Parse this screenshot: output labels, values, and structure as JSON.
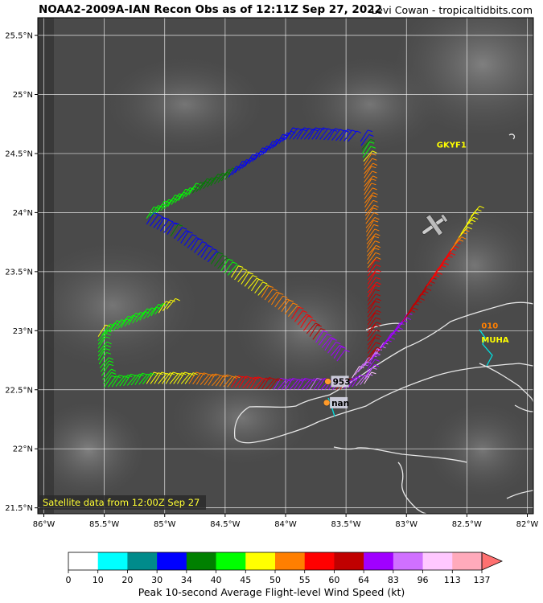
{
  "header": {
    "title": "NOAA2-2009A-IAN Recon Obs as of 12:11Z Sep 27, 2022",
    "credit": "Levi Cowan - tropicaltidbits.com"
  },
  "map": {
    "lon_range": [
      -86.05,
      -81.95
    ],
    "lat_range": [
      21.45,
      25.65
    ],
    "lon_ticks": [
      {
        "value": -86.0,
        "label": "86°W"
      },
      {
        "value": -85.5,
        "label": "85.5°W"
      },
      {
        "value": -85.0,
        "label": "85°W"
      },
      {
        "value": -84.5,
        "label": "84.5°W"
      },
      {
        "value": -84.0,
        "label": "84°W"
      },
      {
        "value": -83.5,
        "label": "83.5°W"
      },
      {
        "value": -83.0,
        "label": "83°W"
      },
      {
        "value": -82.5,
        "label": "82.5°W"
      },
      {
        "value": -82.0,
        "label": "82°W"
      }
    ],
    "lat_ticks": [
      {
        "value": 25.5,
        "label": "25.5°N"
      },
      {
        "value": 25.0,
        "label": "25°N"
      },
      {
        "value": 24.5,
        "label": "24.5°N"
      },
      {
        "value": 24.0,
        "label": "24°N"
      },
      {
        "value": 23.5,
        "label": "23.5°N"
      },
      {
        "value": 23.0,
        "label": "23°N"
      },
      {
        "value": 22.5,
        "label": "22.5°N"
      },
      {
        "value": 22.0,
        "label": "22°N"
      },
      {
        "value": 21.5,
        "label": "21.5°N"
      }
    ],
    "satellite_note": "Satellite data from 12:00Z Sep 27",
    "stations": [
      {
        "id": "GKYF1",
        "lon": -82.75,
        "lat": 24.55,
        "color": "#ffff00"
      },
      {
        "id": "MUHA",
        "lon": -82.38,
        "lat": 22.9,
        "color": "#ffff00"
      },
      {
        "id": "010",
        "lon": -82.38,
        "lat": 23.02,
        "color": "#ff7f00"
      }
    ],
    "center_fixes": [
      {
        "label": "953",
        "lon": -83.65,
        "lat": 22.57
      },
      {
        "label": "nan",
        "lon": -83.66,
        "lat": 22.39
      }
    ],
    "flight_track": [
      {
        "lon": -83.38,
        "lat": 24.6,
        "kt": 30
      },
      {
        "lon": -83.35,
        "lat": 24.4,
        "kt": 50
      },
      {
        "lon": -83.35,
        "lat": 24.15,
        "kt": 50
      },
      {
        "lon": -83.33,
        "lat": 23.8,
        "kt": 50
      },
      {
        "lon": -83.32,
        "lat": 23.5,
        "kt": 55
      },
      {
        "lon": -83.32,
        "lat": 23.25,
        "kt": 60
      },
      {
        "lon": -83.32,
        "lat": 22.95,
        "kt": 60
      },
      {
        "lon": -83.32,
        "lat": 22.7,
        "kt": 64
      },
      {
        "lon": -83.35,
        "lat": 22.55,
        "kt": 96
      },
      {
        "lon": -83.55,
        "lat": 22.5,
        "kt": 60
      },
      {
        "lon": -83.8,
        "lat": 22.5,
        "kt": 83
      },
      {
        "lon": -84.1,
        "lat": 22.5,
        "kt": 64
      },
      {
        "lon": -84.45,
        "lat": 22.52,
        "kt": 55
      },
      {
        "lon": -84.8,
        "lat": 22.55,
        "kt": 50
      },
      {
        "lon": -85.15,
        "lat": 22.55,
        "kt": 45
      },
      {
        "lon": -85.5,
        "lat": 22.52,
        "kt": 40
      },
      {
        "lon": -85.55,
        "lat": 22.75,
        "kt": 40
      },
      {
        "lon": -85.55,
        "lat": 22.95,
        "kt": 45
      },
      {
        "lon": -85.3,
        "lat": 23.05,
        "kt": 40
      },
      {
        "lon": -85.05,
        "lat": 23.15,
        "kt": 45
      },
      {
        "lon": -84.95,
        "lat": 23.2,
        "kt": 50
      }
    ],
    "leg_diagonal_nw": [
      {
        "lon": -85.15,
        "lat": 23.9,
        "kt": 30
      },
      {
        "lon": -84.95,
        "lat": 23.8,
        "kt": 34
      },
      {
        "lon": -84.7,
        "lat": 23.62,
        "kt": 30
      },
      {
        "lon": -84.45,
        "lat": 23.45,
        "kt": 45
      },
      {
        "lon": -84.2,
        "lat": 23.28,
        "kt": 50
      },
      {
        "lon": -83.95,
        "lat": 23.1,
        "kt": 55
      },
      {
        "lon": -83.75,
        "lat": 22.9,
        "kt": 64
      },
      {
        "lon": -83.55,
        "lat": 22.72,
        "kt": 83
      }
    ],
    "leg_diagonal_ne": [
      {
        "lon": -83.45,
        "lat": 22.6,
        "kt": 96
      },
      {
        "lon": -83.25,
        "lat": 22.8,
        "kt": 83
      },
      {
        "lon": -83.05,
        "lat": 23.05,
        "kt": 64
      },
      {
        "lon": -82.85,
        "lat": 23.35,
        "kt": 60
      },
      {
        "lon": -82.65,
        "lat": 23.65,
        "kt": 55
      },
      {
        "lon": -82.5,
        "lat": 23.9,
        "kt": 45
      },
      {
        "lon": -82.45,
        "lat": 24.0,
        "kt": 50
      }
    ],
    "leg_north_arc": [
      {
        "lon": -85.15,
        "lat": 23.95,
        "kt": 40
      },
      {
        "lon": -84.8,
        "lat": 24.15,
        "kt": 40
      },
      {
        "lon": -84.5,
        "lat": 24.28,
        "kt": 34
      },
      {
        "lon": -84.25,
        "lat": 24.45,
        "kt": 30
      },
      {
        "lon": -84.0,
        "lat": 24.62,
        "kt": 30
      },
      {
        "lon": -83.75,
        "lat": 24.62,
        "kt": 30
      },
      {
        "lon": -83.45,
        "lat": 24.6,
        "kt": 30
      }
    ]
  },
  "colorbar": {
    "title": "Peak 10-second Average Flight-level Wind Speed (kt)",
    "ticks": [
      "0",
      "10",
      "20",
      "30",
      "34",
      "40",
      "45",
      "50",
      "55",
      "60",
      "64",
      "83",
      "96",
      "113",
      "137"
    ],
    "colors": [
      "#ffffff",
      "#00ffff",
      "#008b8b",
      "#0000ff",
      "#008000",
      "#00ff00",
      "#ffff00",
      "#ff7f00",
      "#ff0000",
      "#c00000",
      "#a000ff",
      "#d070ff",
      "#ffc8ff",
      "#ffaabb"
    ],
    "extend_color": "#ff7070"
  }
}
